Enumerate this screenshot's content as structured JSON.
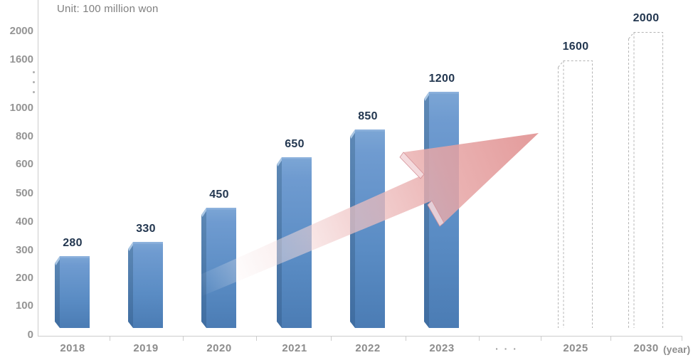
{
  "unit_label": "Unit: 100 million won",
  "x_axis_suffix_label": "(year)",
  "chart_data": {
    "type": "bar",
    "title": "",
    "unit": "100 million won",
    "unit_label": "Unit: 100 million won",
    "xlabel": "(year)",
    "ylabel": "",
    "categories": [
      "2018",
      "2019",
      "2020",
      "2021",
      "2022",
      "2023",
      "· · ·",
      "2025",
      "2030"
    ],
    "bars": [
      {
        "label": "2018",
        "value": 280,
        "style": "solid"
      },
      {
        "label": "2019",
        "value": 330,
        "style": "solid"
      },
      {
        "label": "2020",
        "value": 450,
        "style": "solid"
      },
      {
        "label": "2021",
        "value": 650,
        "style": "solid"
      },
      {
        "label": "2022",
        "value": 850,
        "style": "solid"
      },
      {
        "label": "2023",
        "value": 1200,
        "style": "solid"
      },
      {
        "label": "· · ·",
        "value": null,
        "style": "axis-gap"
      },
      {
        "label": "2025",
        "value": 1600,
        "style": "dashed-outline"
      },
      {
        "label": "2030",
        "value": 2000,
        "style": "dashed-outline"
      }
    ],
    "y_ticks": [
      {
        "label": "0",
        "value": 0
      },
      {
        "label": "100",
        "value": 100
      },
      {
        "label": "200",
        "value": 200
      },
      {
        "label": "300",
        "value": 300
      },
      {
        "label": "400",
        "value": 400
      },
      {
        "label": "500",
        "value": 500
      },
      {
        "label": "600",
        "value": 600
      },
      {
        "label": "800",
        "value": 800
      },
      {
        "label": "1000",
        "value": 1000
      },
      {
        "label": "1600",
        "value": 1600
      },
      {
        "label": "2000",
        "value": 2000
      }
    ],
    "y_axis_break": {
      "between": [
        1000,
        1600
      ]
    },
    "x_axis_break": {
      "between": [
        "2023",
        "2025"
      ]
    },
    "annotations": {
      "trend_arrow": "upward-growth-arrow"
    },
    "legend": [],
    "grid": false,
    "colors": {
      "bar_front_top": "#7ca6d5",
      "bar_front_bottom": "#4b7cb4",
      "bar_side": "#4f7cab",
      "dashed_outline": "#b4b4b4",
      "value_label": "#233750",
      "axis_text": "#8f8f8f",
      "axis_line": "#cccccc",
      "arrow_pink": "#e29595"
    }
  }
}
